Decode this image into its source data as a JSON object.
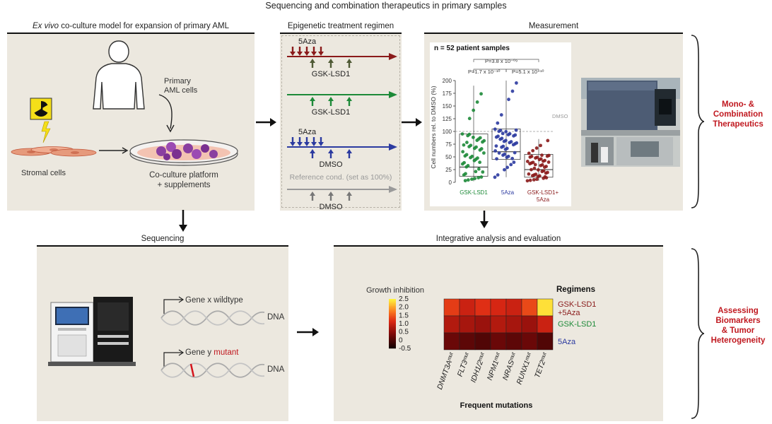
{
  "main_title": "Sequencing and combination therapeutics in primary samples",
  "panel_culture": {
    "title_em": "Ex vivo",
    "title_rest": " co-culture model for expansion of primary AML",
    "primary_label": "Primary\nAML cells",
    "stromal_label": "Stromal cells",
    "platform_label": "Co-culture platform\n+ supplements"
  },
  "panel_treatment": {
    "title": "Epigenetic treatment regimen",
    "rows": [
      {
        "top": "5Aza",
        "bottom": "GSK-LSD1",
        "color": "#8a1a1a"
      },
      {
        "top": "",
        "bottom": "GSK-LSD1",
        "color": "#1d8a38"
      },
      {
        "top": "5Aza",
        "bottom": "DMSO",
        "color": "#2b3aa0"
      },
      {
        "top": "Reference cond. (set as 100%)",
        "bottom": "DMSO",
        "color": "#9a9a9a"
      }
    ]
  },
  "panel_measurement": {
    "title": "Measurement",
    "n_label": "n = 52 patient samples",
    "ylabel": "Cell numbers rel. to DMSO (%)",
    "pvals": [
      "P=3.8 x 10⁻⁰⁹",
      "P=1.7 x 10⁻¹⁰",
      "P=5.1 x 10⁻¹⁰"
    ],
    "dmso_label": "DMSO",
    "yticks": [
      "0",
      "25",
      "50",
      "75",
      "100",
      "125",
      "150",
      "175",
      "200"
    ],
    "xlabels": [
      "GSK-LSD1",
      "5Aza",
      "GSK-LSD1+\n5Aza"
    ]
  },
  "side_label_1": "Mono- &\nCombination\nTherapeutics",
  "panel_sequencing": {
    "title": "Sequencing",
    "gene1": "Gene x wildtype",
    "gene2_prefix": "Gene y ",
    "gene2_mut": "mutant",
    "dna": "DNA"
  },
  "panel_integrative": {
    "title": "Integrative analysis and evaluation",
    "colorbar_title": "Growth inhibition",
    "colorbar_ticks": [
      "2.5",
      "2.0",
      "1.5",
      "1.0",
      "0.5",
      "0",
      "-0.5"
    ],
    "regimens_title": "Regimens",
    "regimens": [
      "GSK-LSD1\n+5Aza",
      "GSK-LSD1",
      "5Aza"
    ],
    "mutations": [
      "DNMT3Aᵐᵘᵗ",
      "FLT3ᵐᵘᵗ",
      "IDH1/2ᵐᵘᵗ",
      "NPM1ᵐᵘᵗ",
      "NRASᵐᵘᵗ",
      "RUNX1ᵐᵘᵗ",
      "TET2ᵐᵘᵗ"
    ],
    "xlabel": "Frequent mutations",
    "heat": [
      [
        1.3,
        1.0,
        1.2,
        1.1,
        1.0,
        1.4,
        2.4
      ],
      [
        0.8,
        0.7,
        0.6,
        0.8,
        0.7,
        0.6,
        1.0
      ],
      [
        0.2,
        0.1,
        0.0,
        0.2,
        0.1,
        0.2,
        0.0
      ]
    ]
  },
  "side_label_2": "Assessing\nBiomarkers\n& Tumor\nHeterogeneity",
  "colors": {
    "panel_bg": "#ece8df",
    "accent_red": "#c0181f",
    "green": "#1d8a38",
    "blue": "#2b3aa0",
    "darkred": "#8a1a1a"
  }
}
